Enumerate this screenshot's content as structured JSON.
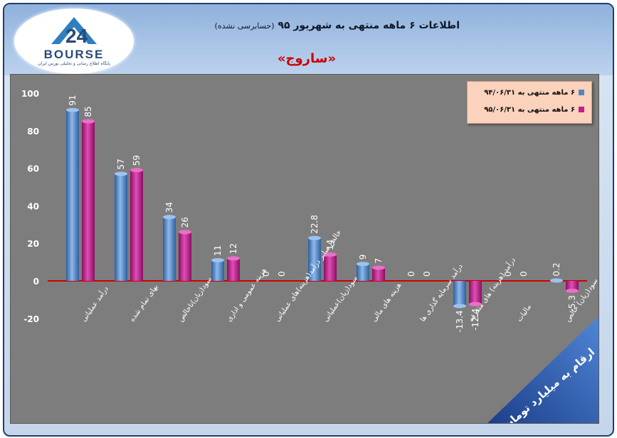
{
  "header": {
    "title": "اطلاعات ۶ ماهه منتهی به شهریور ۹۵",
    "title_note": "(حسابرسی نشده)",
    "company": "«ساروج»",
    "logo_text": "BOURSE",
    "logo_subtitle": "پایگاه اطلاع رسانی و تحلیلی بورس ایران"
  },
  "unit_label": "ارقام به میلیارد تومان",
  "colors": {
    "series1": "#4f86c6",
    "series2": "#c21f8f",
    "zero_line": "#d00000",
    "plot_bg": "#7d7d7d"
  },
  "chart_data": {
    "type": "bar",
    "categories": [
      "درآمد عملیاتی",
      "بهای تمام شده",
      "سود(زیان)ناخالص",
      "هزینه عمومی و اداری",
      "خالص سایر درآمد(هزینه)های عملیاتی",
      "سود(زیان)عملیاتی",
      "هزینه های مالی",
      "درآمد سرمایه گذاری ها",
      "درآمد (هزینه) های متفرقه",
      "مالیات",
      "سود(زیان) خالص"
    ],
    "series": [
      {
        "name": "۶ ماهه منتهی به ۹۴/۰۶/۳۱",
        "values": [
          91,
          57,
          34,
          11,
          0,
          22.8,
          9,
          0,
          -13.4,
          0,
          0.2
        ]
      },
      {
        "name": "۶ ماهه منتهی به ۹۵/۰۶/۳۱",
        "values": [
          85,
          59,
          26,
          12,
          0,
          14,
          7,
          0,
          -12.4,
          0,
          -5.3
        ]
      }
    ],
    "yticks": [
      -20,
      0,
      20,
      40,
      60,
      80,
      100
    ],
    "ylim": [
      -20,
      100
    ],
    "grid": false,
    "legend_position": "top-right"
  }
}
